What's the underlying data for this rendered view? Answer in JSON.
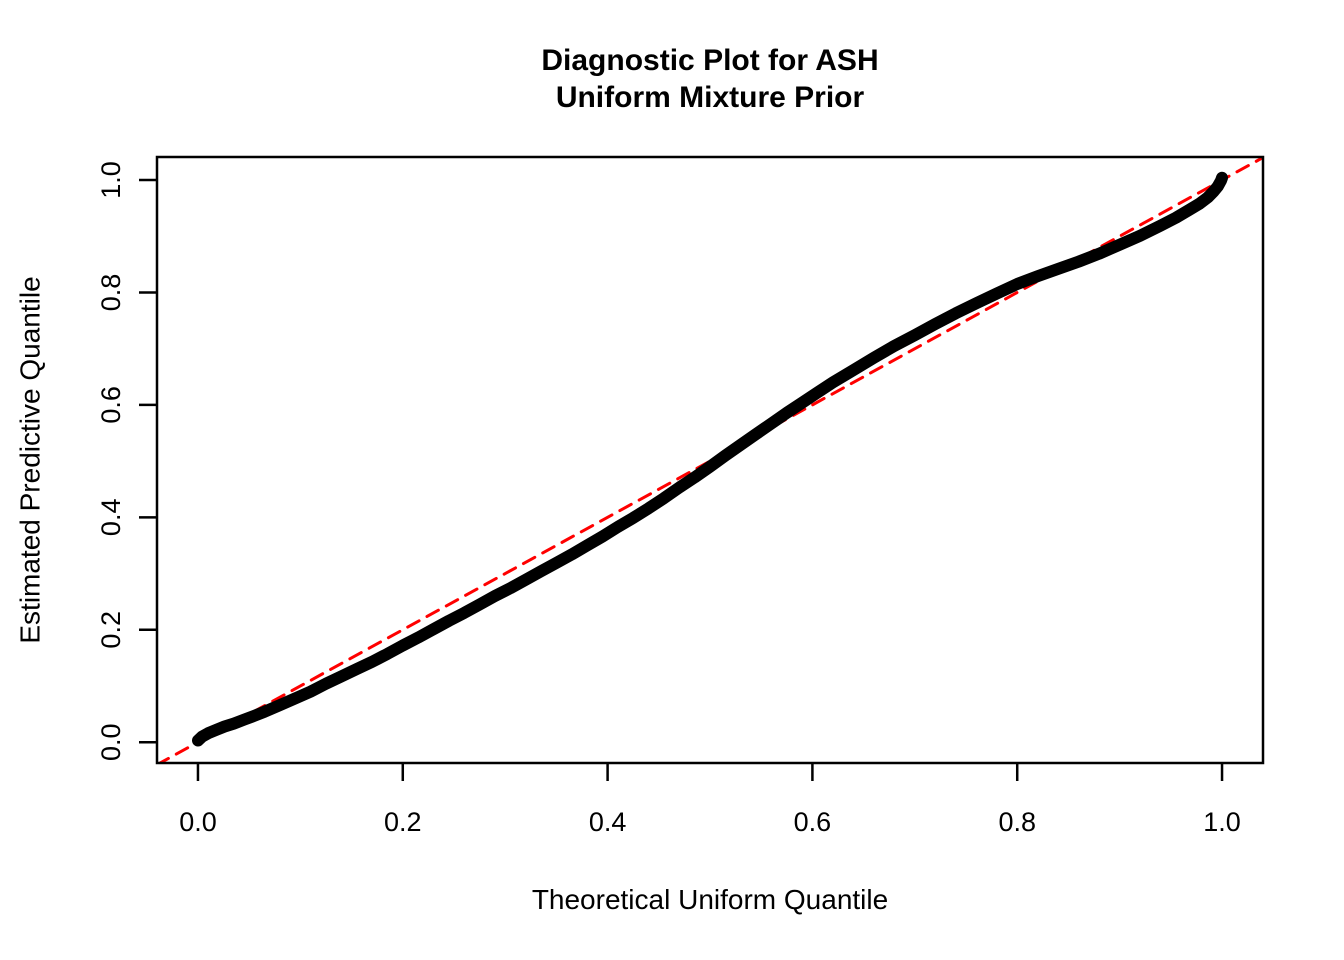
{
  "title": {
    "line1": "Diagnostic Plot for ASH",
    "line2": "Uniform Mixture Prior"
  },
  "chart_data": {
    "type": "line",
    "title": "Diagnostic Plot for ASH\nUniform Mixture Prior",
    "xlabel": "Theoretical Uniform Quantile",
    "ylabel": "Estimated Predictive Quantile",
    "xlim": [
      -0.04,
      1.04
    ],
    "ylim": [
      -0.037,
      1.041
    ],
    "x_ticks": [
      "0.0",
      "0.2",
      "0.4",
      "0.6",
      "0.8",
      "1.0"
    ],
    "y_ticks": [
      "0.0",
      "0.2",
      "0.4",
      "0.6",
      "0.8",
      "1.0"
    ],
    "x_tick_values": [
      0.0,
      0.2,
      0.4,
      0.6,
      0.8,
      1.0
    ],
    "y_tick_values": [
      0.0,
      0.2,
      0.4,
      0.6,
      0.8,
      1.0
    ],
    "grid": false,
    "legend": null,
    "series": [
      {
        "name": "estimated-predictive-quantile-curve",
        "type": "line",
        "color": "#000000",
        "linewidth": 12,
        "style": "solid",
        "points": [
          [
            0.0,
            0.003
          ],
          [
            0.004,
            0.01
          ],
          [
            0.01,
            0.016
          ],
          [
            0.018,
            0.022
          ],
          [
            0.026,
            0.028
          ],
          [
            0.035,
            0.033
          ],
          [
            0.045,
            0.04
          ],
          [
            0.055,
            0.047
          ],
          [
            0.065,
            0.054
          ],
          [
            0.08,
            0.066
          ],
          [
            0.095,
            0.078
          ],
          [
            0.11,
            0.09
          ],
          [
            0.125,
            0.104
          ],
          [
            0.14,
            0.117
          ],
          [
            0.155,
            0.13
          ],
          [
            0.17,
            0.143
          ],
          [
            0.185,
            0.157
          ],
          [
            0.2,
            0.172
          ],
          [
            0.215,
            0.186
          ],
          [
            0.23,
            0.201
          ],
          [
            0.245,
            0.216
          ],
          [
            0.26,
            0.23
          ],
          [
            0.275,
            0.245
          ],
          [
            0.29,
            0.26
          ],
          [
            0.305,
            0.274
          ],
          [
            0.32,
            0.289
          ],
          [
            0.335,
            0.304
          ],
          [
            0.35,
            0.319
          ],
          [
            0.365,
            0.334
          ],
          [
            0.38,
            0.35
          ],
          [
            0.395,
            0.366
          ],
          [
            0.41,
            0.383
          ],
          [
            0.425,
            0.399
          ],
          [
            0.44,
            0.416
          ],
          [
            0.455,
            0.434
          ],
          [
            0.47,
            0.453
          ],
          [
            0.485,
            0.471
          ],
          [
            0.5,
            0.49
          ],
          [
            0.515,
            0.51
          ],
          [
            0.53,
            0.529
          ],
          [
            0.545,
            0.548
          ],
          [
            0.56,
            0.567
          ],
          [
            0.575,
            0.586
          ],
          [
            0.59,
            0.604
          ],
          [
            0.605,
            0.622
          ],
          [
            0.62,
            0.64
          ],
          [
            0.64,
            0.662
          ],
          [
            0.66,
            0.684
          ],
          [
            0.68,
            0.705
          ],
          [
            0.7,
            0.724
          ],
          [
            0.72,
            0.744
          ],
          [
            0.74,
            0.763
          ],
          [
            0.76,
            0.781
          ],
          [
            0.78,
            0.798
          ],
          [
            0.8,
            0.815
          ],
          [
            0.82,
            0.829
          ],
          [
            0.84,
            0.842
          ],
          [
            0.86,
            0.855
          ],
          [
            0.88,
            0.869
          ],
          [
            0.9,
            0.885
          ],
          [
            0.92,
            0.901
          ],
          [
            0.94,
            0.919
          ],
          [
            0.955,
            0.933
          ],
          [
            0.968,
            0.947
          ],
          [
            0.978,
            0.958
          ],
          [
            0.986,
            0.969
          ],
          [
            0.992,
            0.98
          ],
          [
            0.996,
            0.989
          ],
          [
            0.999,
            0.999
          ],
          [
            1.0,
            1.004
          ]
        ]
      },
      {
        "name": "identity-reference-line",
        "type": "line",
        "color": "#FF0000",
        "linewidth": 3,
        "style": "dashed",
        "dash": [
          13,
          9
        ],
        "points": [
          [
            -0.04,
            -0.04
          ],
          [
            1.041,
            1.041
          ]
        ]
      }
    ]
  },
  "colors": {
    "background": "#FFFFFF",
    "axis": "#000000",
    "curve": "#000000",
    "reference_line": "#FF0000"
  }
}
